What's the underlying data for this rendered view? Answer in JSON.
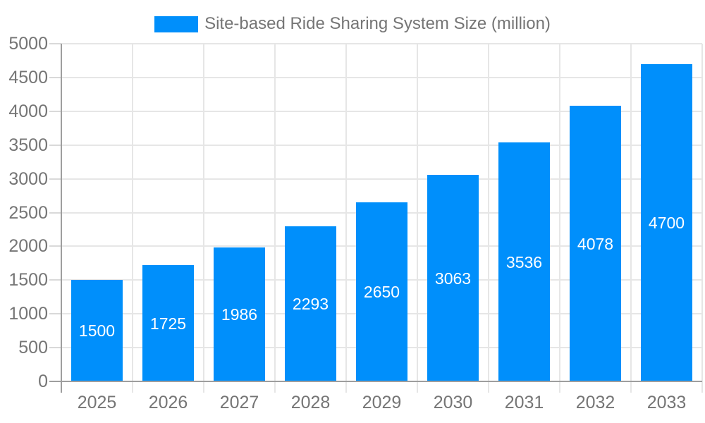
{
  "legend": {
    "label": "Site-based Ride Sharing System Size (million)"
  },
  "chart_data": {
    "type": "bar",
    "title": "",
    "series_name": "Site-based Ride Sharing System Size (million)",
    "categories": [
      "2025",
      "2026",
      "2027",
      "2028",
      "2029",
      "2030",
      "2031",
      "2032",
      "2033"
    ],
    "values": [
      1500,
      1725,
      1986,
      2293,
      2650,
      3063,
      3536,
      4078,
      4700
    ],
    "data_labels": [
      "1500",
      "1725",
      "1986",
      "2293",
      "2650",
      "3063",
      "3536",
      "4078",
      "4700"
    ],
    "xlabel": "",
    "ylabel": "",
    "ylim": [
      0,
      5000
    ],
    "yticks": [
      0,
      500,
      1000,
      1500,
      2000,
      2500,
      3000,
      3500,
      4000,
      4500,
      5000
    ],
    "grid": true,
    "legend_position": "top-center",
    "colors": {
      "bar": "#008FFB",
      "bar_label_text": "#ffffff",
      "axis_text": "#757575",
      "legend_text": "#757575",
      "gridline": "#e6e6e6",
      "tick": "#d9d9d9",
      "axis_line": "#9e9e9e",
      "background": "#ffffff"
    }
  }
}
